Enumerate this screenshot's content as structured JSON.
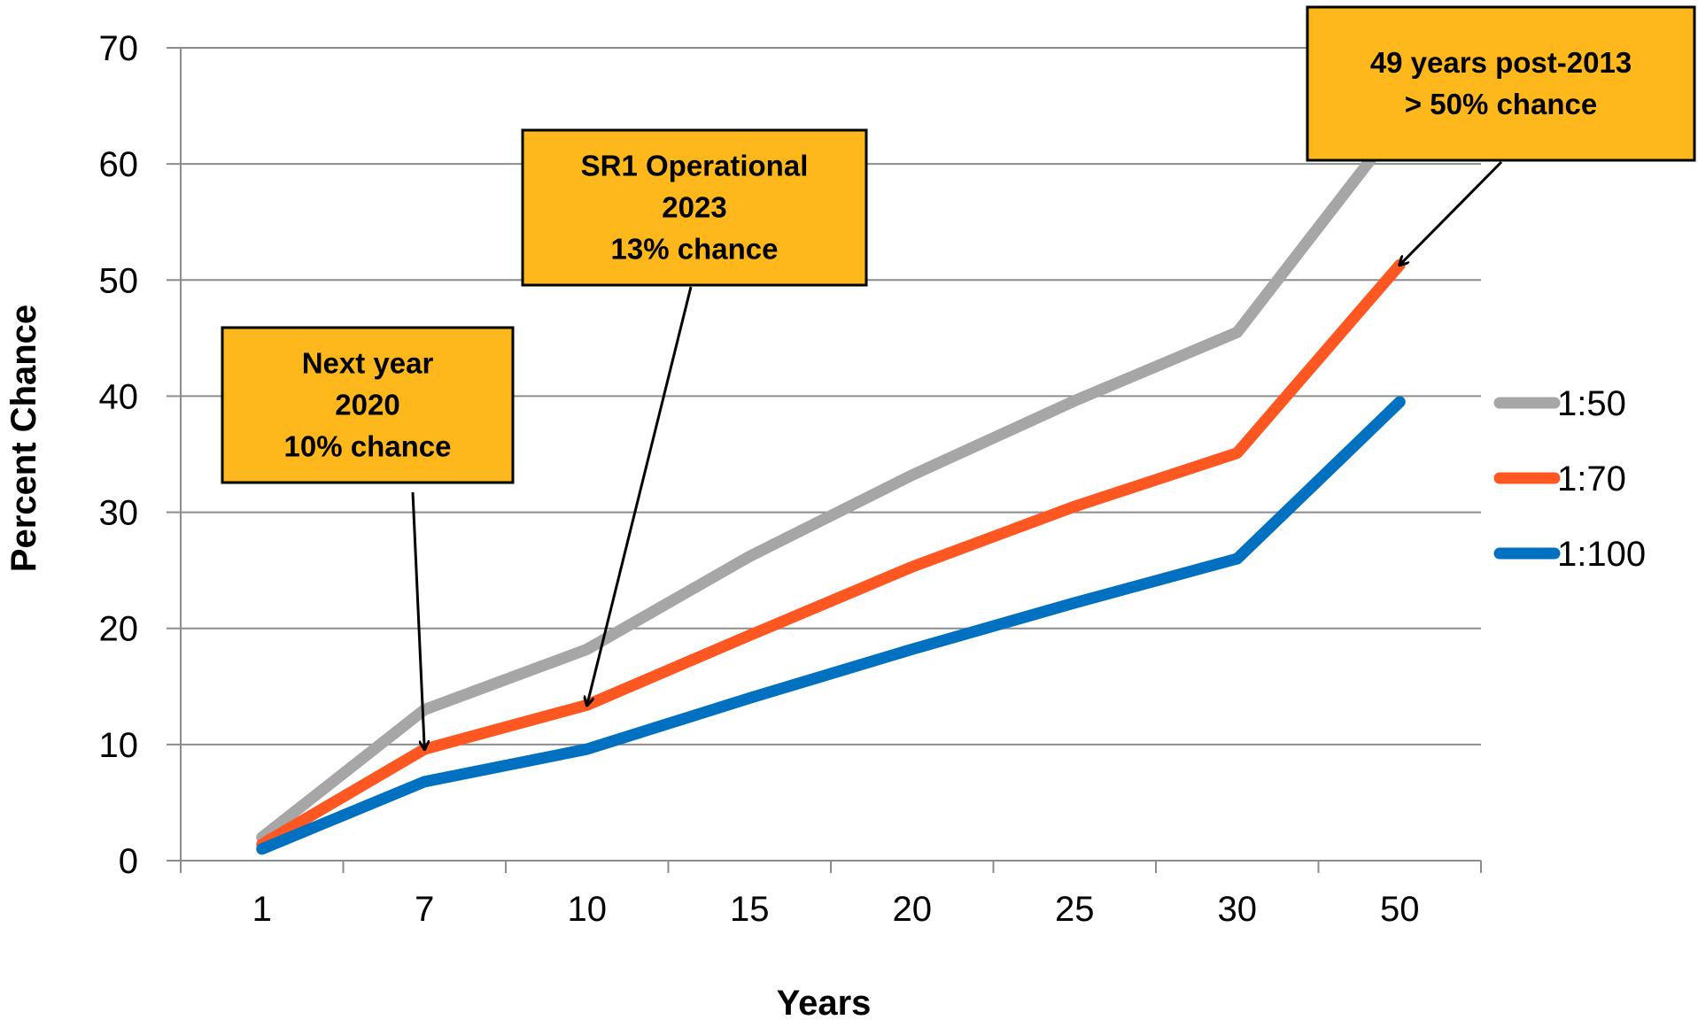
{
  "chart_data": {
    "type": "line",
    "title": "",
    "xlabel": "Years",
    "ylabel": "Percent Chance",
    "categories": [
      "1",
      "7",
      "10",
      "15",
      "20",
      "25",
      "30",
      "50"
    ],
    "ylim": [
      0,
      70
    ],
    "yticks": [
      0,
      10,
      20,
      30,
      40,
      50,
      60,
      70
    ],
    "grid": true,
    "legend_position": "right",
    "series": [
      {
        "name": "1:50",
        "color": "#A6A6A6",
        "values": [
          2,
          13,
          18.2,
          26.2,
          33.2,
          39.6,
          45.5,
          63.6
        ]
      },
      {
        "name": "1:70",
        "color": "#FF5722",
        "values": [
          1.4,
          9.6,
          13.4,
          19.4,
          25.3,
          30.5,
          35.1,
          51.3
        ]
      },
      {
        "name": "1:100",
        "color": "#0070C0",
        "values": [
          1,
          6.8,
          9.6,
          14.0,
          18.2,
          22.2,
          26.0,
          39.5
        ]
      }
    ],
    "annotations": [
      {
        "lines": [
          "Next year",
          "2020",
          "10% chance"
        ],
        "points_to": {
          "category": "7",
          "value": 9.6
        }
      },
      {
        "lines": [
          "SR1 Operational",
          "2023",
          "13% chance"
        ],
        "points_to": {
          "category": "10",
          "value": 13.4
        }
      },
      {
        "lines": [
          "49 years post-2013",
          "> 50% chance"
        ],
        "points_to": {
          "category": "50",
          "value": 51.3
        }
      }
    ],
    "annotation_fill": "#FFB81C"
  }
}
